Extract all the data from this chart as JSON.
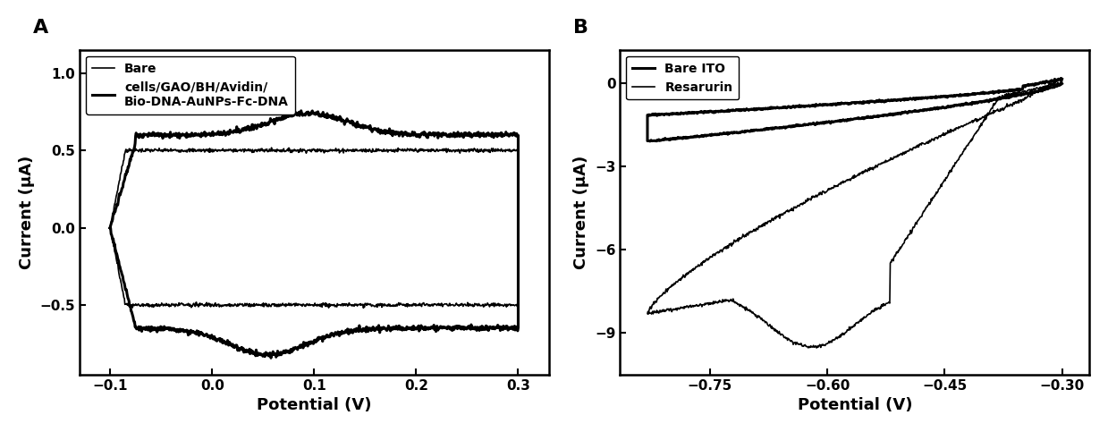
{
  "panel_A": {
    "label": "A",
    "xlabel": "Potential (V)",
    "ylabel": "Current (μA)",
    "xlim": [
      -0.13,
      0.33
    ],
    "ylim": [
      -0.95,
      1.15
    ],
    "xticks": [
      -0.1,
      0.0,
      0.1,
      0.2,
      0.3
    ],
    "yticks": [
      -0.5,
      0.0,
      0.5,
      1.0
    ],
    "legend": [
      "Bare",
      "cells/GAO/BH/Avidin/\nBio-DNA-AuNPs-Fc-DNA"
    ],
    "bare_lw": 1.2,
    "cells_lw": 2.2
  },
  "panel_B": {
    "label": "B",
    "xlabel": "Potential (V)",
    "ylabel": "Current (μA)",
    "xlim": [
      -0.865,
      -0.265
    ],
    "ylim": [
      -10.5,
      1.2
    ],
    "xticks": [
      -0.75,
      -0.6,
      -0.45,
      -0.3
    ],
    "yticks": [
      -9,
      -6,
      -3,
      0
    ],
    "legend": [
      "Bare ITO",
      "Resarurin"
    ],
    "bare_ito_lw": 2.2,
    "resarurin_lw": 1.2
  },
  "background_color": "#ffffff",
  "line_color": "#000000",
  "font_size_label": 13,
  "font_size_tick": 11,
  "font_size_legend": 10,
  "font_size_panel_label": 16
}
